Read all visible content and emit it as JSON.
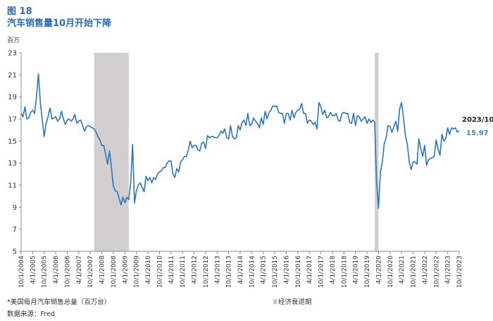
{
  "figure_number": "图 18",
  "figure_title": "汽车销售量10月开始下降",
  "unit_label": "百万",
  "footnote": "*美国每月汽车销售总量（百万台）",
  "source": "数据来源：Fred",
  "recession_legend": "经济衰退期",
  "end_annotation": {
    "date": "2023/10",
    "value": "15.97"
  },
  "colors": {
    "line": "#2e75b6",
    "recession": "#d0cecf",
    "title": "#2e6db4"
  },
  "chart_data": {
    "type": "line",
    "title": "汽车销售量10月开始下降",
    "ylabel": "百万",
    "xlabel": "",
    "ylim": [
      5,
      23
    ],
    "yticks": [
      5,
      7,
      9,
      11,
      13,
      15,
      17,
      19,
      21,
      23
    ],
    "x_start": "2004-10",
    "x_end": "2023-10",
    "xticks": [
      "10/1/2004",
      "4/1/2005",
      "10/1/2005",
      "4/1/2006",
      "10/1/2006",
      "4/1/2007",
      "10/1/2007",
      "4/1/2008",
      "10/1/2008",
      "4/1/2009",
      "10/1/2009",
      "4/1/2010",
      "10/1/2010",
      "4/1/2011",
      "10/1/2011",
      "4/1/2012",
      "10/1/2012",
      "4/1/2013",
      "10/1/2013",
      "4/1/2014",
      "10/1/2014",
      "4/1/2015",
      "10/1/2015",
      "4/1/2016",
      "10/1/2016",
      "4/1/2017",
      "10/1/2017",
      "4/1/2018",
      "10/1/2018",
      "4/1/2019",
      "10/1/2019",
      "4/1/2020",
      "10/1/2020",
      "4/1/2021",
      "10/1/2021",
      "4/1/2022",
      "10/1/2022",
      "4/1/2023",
      "10/1/2023"
    ],
    "recessions": [
      [
        "2007-12",
        "2009-06"
      ],
      [
        "2020-02",
        "2020-04"
      ]
    ],
    "grid": false,
    "series": [
      {
        "points": [
          [
            "2004-10",
            17.5
          ],
          [
            "2004-11",
            17.2
          ],
          [
            "2004-12",
            18.1
          ],
          [
            "2005-01",
            17.0
          ],
          [
            "2005-02",
            17.1
          ],
          [
            "2005-03",
            17.6
          ],
          [
            "2005-04",
            17.8
          ],
          [
            "2005-05",
            17.5
          ],
          [
            "2005-06",
            19.0
          ],
          [
            "2005-07",
            21.1
          ],
          [
            "2005-08",
            18.5
          ],
          [
            "2005-09",
            16.9
          ],
          [
            "2005-10",
            15.4
          ],
          [
            "2005-11",
            16.6
          ],
          [
            "2005-12",
            17.2
          ],
          [
            "2006-01",
            18.0
          ],
          [
            "2006-02",
            17.0
          ],
          [
            "2006-03",
            17.1
          ],
          [
            "2006-04",
            17.2
          ],
          [
            "2006-05",
            16.8
          ],
          [
            "2006-06",
            17.0
          ],
          [
            "2006-07",
            17.7
          ],
          [
            "2006-08",
            17.0
          ],
          [
            "2006-09",
            16.5
          ],
          [
            "2006-10",
            16.9
          ],
          [
            "2006-11",
            17.0
          ],
          [
            "2006-12",
            16.8
          ],
          [
            "2007-01",
            17.0
          ],
          [
            "2007-02",
            17.4
          ],
          [
            "2007-03",
            16.6
          ],
          [
            "2007-04",
            16.8
          ],
          [
            "2007-05",
            16.9
          ],
          [
            "2007-06",
            16.4
          ],
          [
            "2007-07",
            15.9
          ],
          [
            "2007-08",
            16.3
          ],
          [
            "2007-09",
            16.4
          ],
          [
            "2007-10",
            16.3
          ],
          [
            "2007-11",
            16.2
          ],
          [
            "2007-12",
            16.1
          ],
          [
            "2008-01",
            15.8
          ],
          [
            "2008-02",
            15.4
          ],
          [
            "2008-03",
            15.1
          ],
          [
            "2008-04",
            14.6
          ],
          [
            "2008-05",
            14.6
          ],
          [
            "2008-06",
            13.8
          ],
          [
            "2008-07",
            12.9
          ],
          [
            "2008-08",
            14.1
          ],
          [
            "2008-09",
            12.6
          ],
          [
            "2008-10",
            10.9
          ],
          [
            "2008-11",
            10.5
          ],
          [
            "2008-12",
            10.4
          ],
          [
            "2009-01",
            9.8
          ],
          [
            "2009-02",
            9.2
          ],
          [
            "2009-03",
            9.9
          ],
          [
            "2009-04",
            9.4
          ],
          [
            "2009-05",
            9.9
          ],
          [
            "2009-06",
            9.7
          ],
          [
            "2009-07",
            11.2
          ],
          [
            "2009-08",
            14.7
          ],
          [
            "2009-09",
            9.4
          ],
          [
            "2009-10",
            10.5
          ],
          [
            "2009-11",
            11.0
          ],
          [
            "2009-12",
            11.2
          ],
          [
            "2010-01",
            10.8
          ],
          [
            "2010-02",
            10.4
          ],
          [
            "2010-03",
            11.8
          ],
          [
            "2010-04",
            11.4
          ],
          [
            "2010-05",
            11.7
          ],
          [
            "2010-06",
            11.2
          ],
          [
            "2010-07",
            11.7
          ],
          [
            "2010-08",
            11.5
          ],
          [
            "2010-09",
            12.0
          ],
          [
            "2010-10",
            12.2
          ],
          [
            "2010-11",
            12.3
          ],
          [
            "2010-12",
            12.6
          ],
          [
            "2011-01",
            12.6
          ],
          [
            "2011-02",
            13.0
          ],
          [
            "2011-03",
            13.2
          ],
          [
            "2011-04",
            13.2
          ],
          [
            "2011-05",
            12.0
          ],
          [
            "2011-06",
            11.7
          ],
          [
            "2011-07",
            12.5
          ],
          [
            "2011-08",
            12.2
          ],
          [
            "2011-09",
            13.1
          ],
          [
            "2011-10",
            13.3
          ],
          [
            "2011-11",
            13.6
          ],
          [
            "2011-12",
            13.6
          ],
          [
            "2012-01",
            14.2
          ],
          [
            "2012-02",
            15.0
          ],
          [
            "2012-03",
            14.4
          ],
          [
            "2012-04",
            14.6
          ],
          [
            "2012-05",
            14.6
          ],
          [
            "2012-06",
            14.2
          ],
          [
            "2012-07",
            14.1
          ],
          [
            "2012-08",
            14.8
          ],
          [
            "2012-09",
            14.9
          ],
          [
            "2012-10",
            14.3
          ],
          [
            "2012-11",
            15.5
          ],
          [
            "2012-12",
            15.3
          ],
          [
            "2013-01",
            15.4
          ],
          [
            "2013-02",
            15.4
          ],
          [
            "2013-03",
            15.3
          ],
          [
            "2013-04",
            15.3
          ],
          [
            "2013-05",
            15.5
          ],
          [
            "2013-06",
            15.9
          ],
          [
            "2013-07",
            15.7
          ],
          [
            "2013-08",
            16.1
          ],
          [
            "2013-09",
            15.3
          ],
          [
            "2013-10",
            15.2
          ],
          [
            "2013-11",
            16.4
          ],
          [
            "2013-12",
            15.4
          ],
          [
            "2014-01",
            15.2
          ],
          [
            "2014-02",
            15.3
          ],
          [
            "2014-03",
            16.4
          ],
          [
            "2014-04",
            16.0
          ],
          [
            "2014-05",
            16.7
          ],
          [
            "2014-06",
            16.9
          ],
          [
            "2014-07",
            16.4
          ],
          [
            "2014-08",
            17.5
          ],
          [
            "2014-09",
            16.4
          ],
          [
            "2014-10",
            16.5
          ],
          [
            "2014-11",
            17.1
          ],
          [
            "2014-12",
            16.8
          ],
          [
            "2015-01",
            16.6
          ],
          [
            "2015-02",
            16.2
          ],
          [
            "2015-03",
            17.1
          ],
          [
            "2015-04",
            16.5
          ],
          [
            "2015-05",
            17.7
          ],
          [
            "2015-06",
            17.0
          ],
          [
            "2015-07",
            17.6
          ],
          [
            "2015-08",
            17.8
          ],
          [
            "2015-09",
            18.2
          ],
          [
            "2015-10",
            18.1
          ],
          [
            "2015-11",
            18.2
          ],
          [
            "2015-12",
            17.6
          ],
          [
            "2016-01",
            17.5
          ],
          [
            "2016-02",
            17.5
          ],
          [
            "2016-03",
            16.6
          ],
          [
            "2016-04",
            17.5
          ],
          [
            "2016-05",
            17.5
          ],
          [
            "2016-06",
            16.9
          ],
          [
            "2016-07",
            17.8
          ],
          [
            "2016-08",
            17.1
          ],
          [
            "2016-09",
            17.6
          ],
          [
            "2016-10",
            17.8
          ],
          [
            "2016-11",
            17.9
          ],
          [
            "2016-12",
            18.4
          ],
          [
            "2017-01",
            17.5
          ],
          [
            "2017-02",
            17.5
          ],
          [
            "2017-03",
            16.6
          ],
          [
            "2017-04",
            16.9
          ],
          [
            "2017-05",
            16.8
          ],
          [
            "2017-06",
            16.5
          ],
          [
            "2017-07",
            16.7
          ],
          [
            "2017-08",
            16.1
          ],
          [
            "2017-09",
            18.5
          ],
          [
            "2017-10",
            18.1
          ],
          [
            "2017-11",
            17.4
          ],
          [
            "2017-12",
            17.8
          ],
          [
            "2018-01",
            17.1
          ],
          [
            "2018-02",
            17.2
          ],
          [
            "2018-03",
            17.6
          ],
          [
            "2018-04",
            17.3
          ],
          [
            "2018-05",
            17.3
          ],
          [
            "2018-06",
            17.5
          ],
          [
            "2018-07",
            16.9
          ],
          [
            "2018-08",
            16.8
          ],
          [
            "2018-09",
            17.5
          ],
          [
            "2018-10",
            17.6
          ],
          [
            "2018-11",
            17.5
          ],
          [
            "2018-12",
            17.5
          ],
          [
            "2019-01",
            16.7
          ],
          [
            "2019-02",
            16.6
          ],
          [
            "2019-03",
            17.5
          ],
          [
            "2019-04",
            16.4
          ],
          [
            "2019-05",
            17.3
          ],
          [
            "2019-06",
            17.2
          ],
          [
            "2019-07",
            16.8
          ],
          [
            "2019-08",
            17.0
          ],
          [
            "2019-09",
            17.2
          ],
          [
            "2019-10",
            16.6
          ],
          [
            "2019-11",
            17.0
          ],
          [
            "2019-12",
            16.7
          ],
          [
            "2020-01",
            16.9
          ],
          [
            "2020-02",
            16.7
          ],
          [
            "2020-03",
            11.3
          ],
          [
            "2020-04",
            8.9
          ],
          [
            "2020-05",
            12.2
          ],
          [
            "2020-06",
            13.1
          ],
          [
            "2020-07",
            14.8
          ],
          [
            "2020-08",
            15.3
          ],
          [
            "2020-09",
            16.4
          ],
          [
            "2020-10",
            16.3
          ],
          [
            "2020-11",
            15.8
          ],
          [
            "2020-12",
            16.3
          ],
          [
            "2021-01",
            16.8
          ],
          [
            "2021-02",
            15.9
          ],
          [
            "2021-03",
            17.9
          ],
          [
            "2021-04",
            18.5
          ],
          [
            "2021-05",
            17.1
          ],
          [
            "2021-06",
            15.5
          ],
          [
            "2021-07",
            14.7
          ],
          [
            "2021-08",
            13.1
          ],
          [
            "2021-09",
            12.4
          ],
          [
            "2021-10",
            13.1
          ],
          [
            "2021-11",
            13.1
          ],
          [
            "2021-12",
            12.9
          ],
          [
            "2022-01",
            15.2
          ],
          [
            "2022-02",
            14.3
          ],
          [
            "2022-03",
            13.6
          ],
          [
            "2022-04",
            14.6
          ],
          [
            "2022-05",
            12.8
          ],
          [
            "2022-06",
            13.3
          ],
          [
            "2022-07",
            13.4
          ],
          [
            "2022-08",
            13.5
          ],
          [
            "2022-09",
            13.6
          ],
          [
            "2022-10",
            15.1
          ],
          [
            "2022-11",
            14.3
          ],
          [
            "2022-12",
            13.7
          ],
          [
            "2023-01",
            15.6
          ],
          [
            "2023-02",
            15.0
          ],
          [
            "2023-03",
            15.2
          ],
          [
            "2023-04",
            16.2
          ],
          [
            "2023-05",
            15.6
          ],
          [
            "2023-06",
            16.2
          ],
          [
            "2023-07",
            16.1
          ],
          [
            "2023-08",
            16.2
          ],
          [
            "2023-09",
            15.8
          ],
          [
            "2023-10",
            15.97
          ]
        ]
      }
    ]
  }
}
